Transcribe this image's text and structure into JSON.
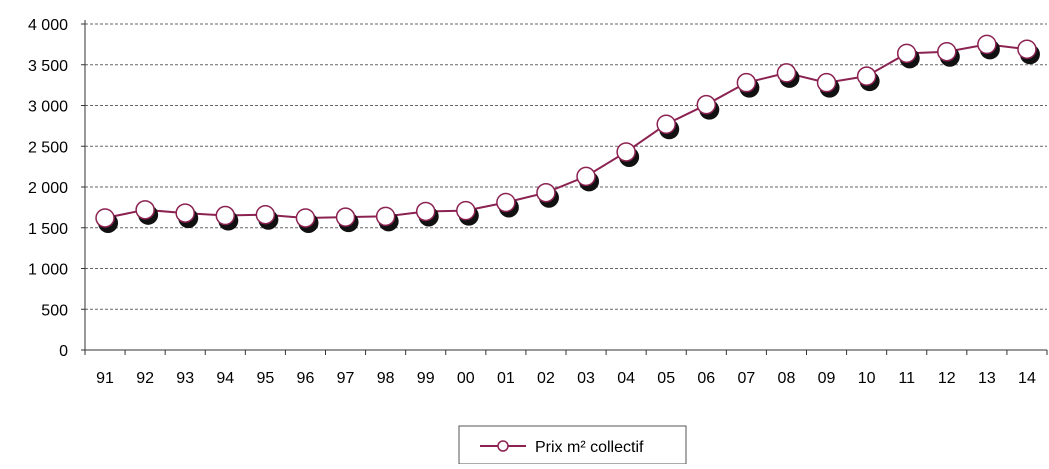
{
  "chart_data": {
    "type": "line",
    "categories": [
      "91",
      "92",
      "93",
      "94",
      "95",
      "96",
      "97",
      "98",
      "99",
      "00",
      "01",
      "02",
      "03",
      "04",
      "05",
      "06",
      "07",
      "08",
      "09",
      "10",
      "11",
      "12",
      "13",
      "14"
    ],
    "series": [
      {
        "name": "Prix m² collectif",
        "values": [
          1620,
          1720,
          1680,
          1650,
          1660,
          1620,
          1630,
          1640,
          1700,
          1710,
          1810,
          1930,
          2130,
          2430,
          2770,
          3010,
          3280,
          3400,
          3280,
          3360,
          3640,
          3660,
          3750,
          3690
        ]
      }
    ],
    "y_ticks": [
      "0",
      "500",
      "1 000",
      "1 500",
      "2 000",
      "2 500",
      "3 000",
      "3 500",
      "4 000"
    ],
    "ylim": [
      0,
      4000
    ],
    "grid": "horizontal dashed",
    "legend_position": "bottom-center",
    "colors": {
      "line": "#8B2252",
      "marker_fill": "#ffffff",
      "marker_shadow": "#111111",
      "grid": "#666666"
    }
  }
}
